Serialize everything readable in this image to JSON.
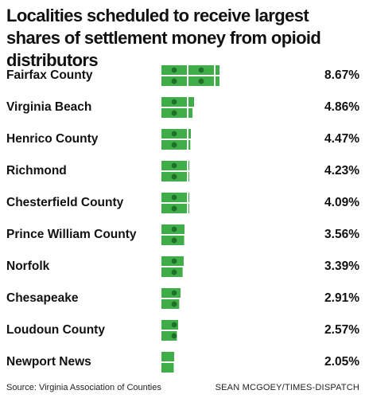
{
  "chart_data": {
    "type": "bar",
    "title": "Localities scheduled to receive largest shares of settlement money from opioid distributors",
    "categories": [
      "Fairfax County",
      "Virginia Beach",
      "Henrico County",
      "Richmond",
      "Chesterfield County",
      "Prince William County",
      "Norfolk",
      "Chesapeake",
      "Loudoun County",
      "Newport News"
    ],
    "values": [
      8.67,
      4.86,
      4.47,
      4.23,
      4.09,
      3.56,
      3.39,
      2.91,
      2.57,
      2.05
    ],
    "value_labels": [
      "8.67%",
      "4.86%",
      "4.47%",
      "4.23%",
      "4.09%",
      "3.56%",
      "3.39%",
      "2.91%",
      "2.57%",
      "2.05%"
    ],
    "bar_style": "stacked dollar bills, two rows",
    "bar_color": "#3fae49",
    "bill_dark_color": "#1f6f2a",
    "xlabel": "",
    "ylabel": ""
  },
  "footer": {
    "source": "Source: Virginia Association of Counties",
    "credit": "SEAN MCGOEY/TIMES-DISPATCH"
  }
}
